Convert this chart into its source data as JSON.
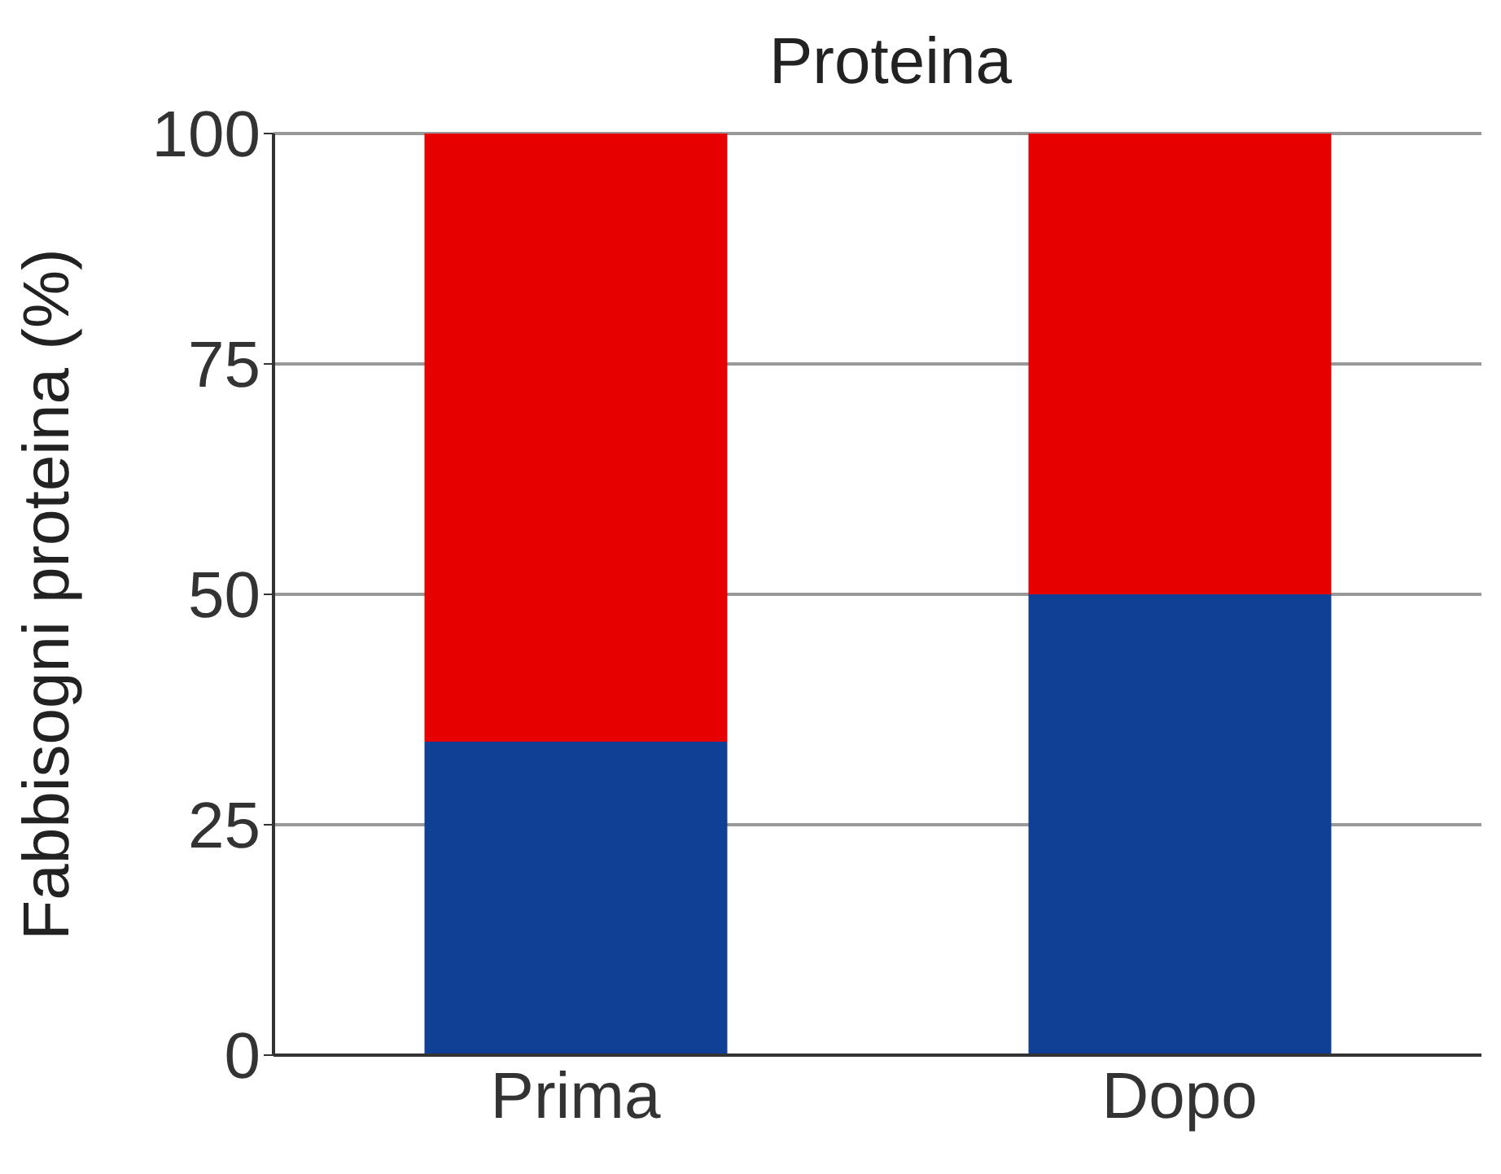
{
  "chart_data": {
    "type": "bar",
    "title": "Proteina",
    "ylabel": "Fabbisogni proteina (%)",
    "categories": [
      "Prima",
      "Dopo"
    ],
    "stacked": true,
    "series": [
      {
        "color": "#103f96",
        "values": [
          34,
          50
        ]
      },
      {
        "color": "#e60000",
        "values": [
          66,
          50
        ]
      }
    ],
    "ylim": [
      0,
      100
    ],
    "yticks": [
      0,
      25,
      50,
      75,
      100
    ],
    "grid": "y",
    "legend": false
  }
}
